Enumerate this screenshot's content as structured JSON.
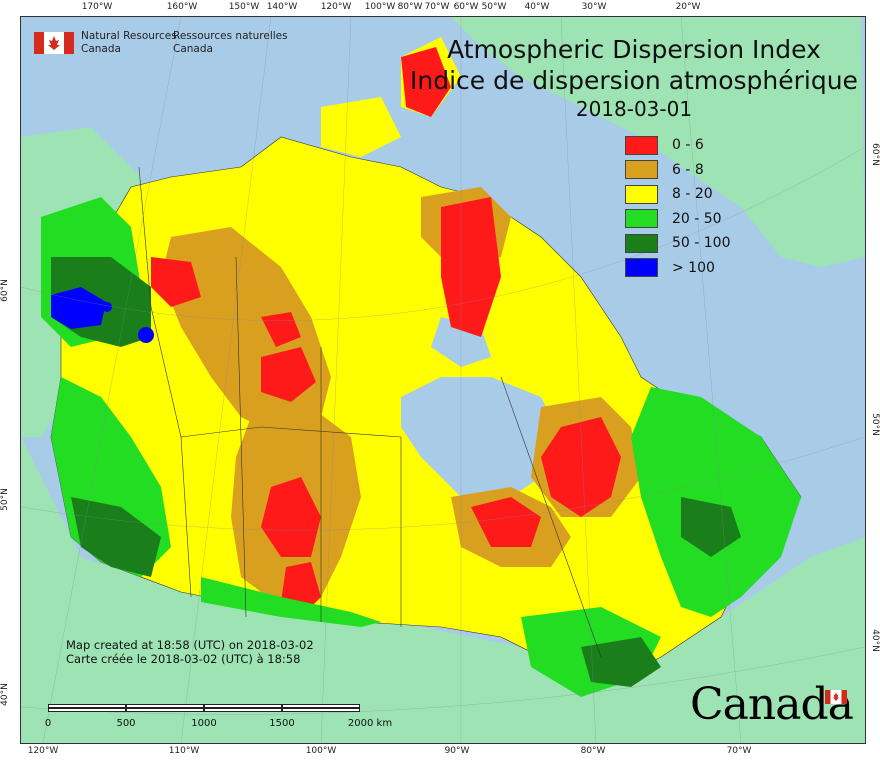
{
  "map": {
    "title_en": "Atmospheric Dispersion Index",
    "title_fr": "Indice de dispersion atmosphérique",
    "date": "2018-03-01"
  },
  "legend": [
    {
      "label": "0 - 6",
      "color": "#ff1a1a"
    },
    {
      "label": "6 - 8",
      "color": "#d9a020"
    },
    {
      "label": "8 - 20",
      "color": "#ffff00"
    },
    {
      "label": "20 - 50",
      "color": "#22dd22"
    },
    {
      "label": "50 - 100",
      "color": "#1a7f1a"
    },
    {
      "label": "> 100",
      "color": "#0000ff"
    }
  ],
  "agency": {
    "en_line1": "Natural Resources",
    "en_line2": "Canada",
    "fr_line1": "Ressources naturelles",
    "fr_line2": "Canada"
  },
  "credit": {
    "line1": "Map created at 18:58 (UTC) on 2018-03-02",
    "line2": "Carte créée le 2018-03-02 (UTC) à 18:58"
  },
  "scale": {
    "labels": [
      "0",
      "500",
      "1000",
      "1500",
      "2000  km"
    ]
  },
  "wordmark": "Canada",
  "graticule": {
    "top": [
      "170°W",
      "160°W",
      "150°W",
      "140°W",
      "120°W",
      "100°W",
      "80°W",
      "70°W",
      "60°W",
      "50°W",
      "40°W",
      "30°W",
      "20°W"
    ],
    "bottom": [
      "120°W",
      "110°W",
      "100°W",
      "90°W",
      "80°W",
      "70°W"
    ],
    "left": [
      "60°N",
      "50°N",
      "40°N"
    ],
    "right": [
      "60°N",
      "50°N",
      "40°N"
    ]
  },
  "colors": {
    "ocean": "#a8cbe8",
    "land_outside": "#9ee3b3",
    "lake": "#a8cbe8",
    "border": "#333333"
  }
}
